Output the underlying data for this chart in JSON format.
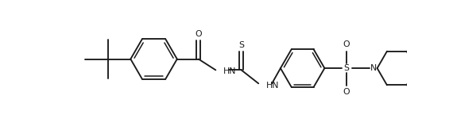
{
  "bg": "#ffffff",
  "lc": "#1a1a1a",
  "tc": "#1a1a1a",
  "lw": 1.35,
  "lw_thin": 1.1,
  "fs": 7.8,
  "figsize": [
    5.7,
    1.59
  ],
  "dpi": 100,
  "xlim": [
    0.0,
    5.7
  ],
  "ylim": [
    0.0,
    1.59
  ]
}
